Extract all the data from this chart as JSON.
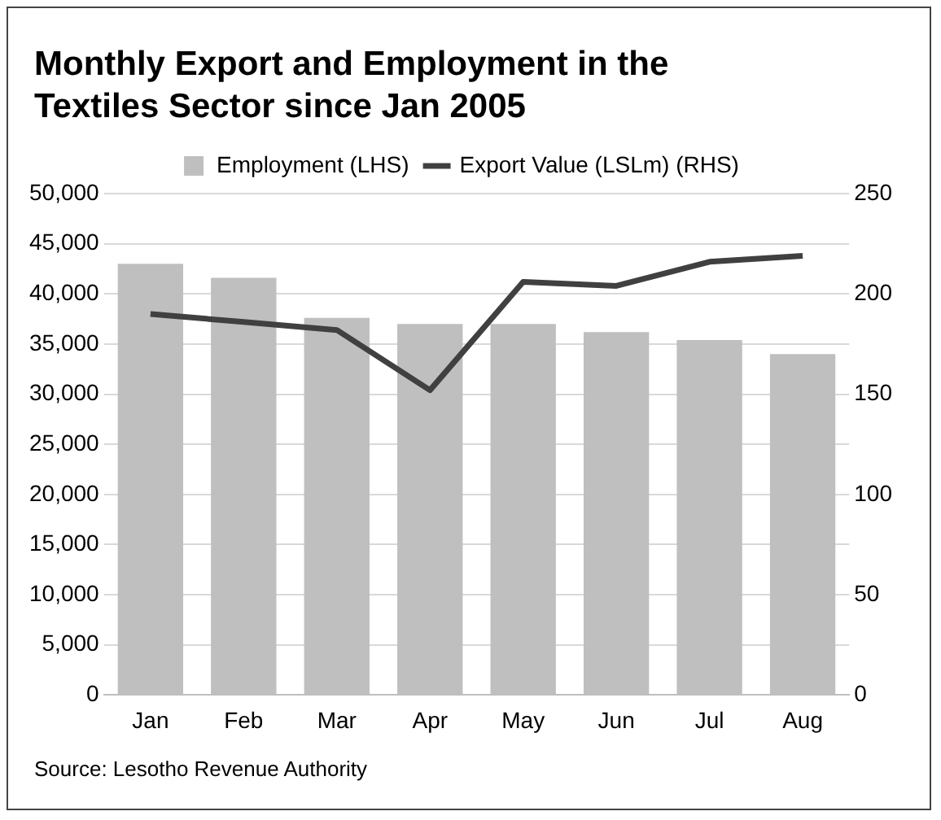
{
  "chart_data": {
    "type": "bar",
    "title": "Monthly Export and Employment in the Textiles Sector since Jan 2005",
    "categories": [
      "Jan",
      "Feb",
      "Mar",
      "Apr",
      "May",
      "Jun",
      "Jul",
      "Aug"
    ],
    "series": [
      {
        "name": "Employment (LHS)",
        "color": "#bfbfbf",
        "values": [
          43000,
          41600,
          37600,
          37000,
          37000,
          36200,
          35400,
          34000
        ]
      },
      {
        "name": "Export Value (LSLm) (RHS)",
        "type": "line",
        "axis": "y2",
        "color": "#404040",
        "values": [
          190,
          186,
          182,
          152,
          206,
          204,
          216,
          219
        ]
      }
    ],
    "ylim": [
      0,
      50000
    ],
    "yticks": [
      {
        "value": 0,
        "label": "0"
      },
      {
        "value": 5000,
        "label": "5,000"
      },
      {
        "value": 10000,
        "label": "10,000"
      },
      {
        "value": 15000,
        "label": "15,000"
      },
      {
        "value": 20000,
        "label": "20,000"
      },
      {
        "value": 25000,
        "label": "25,000"
      },
      {
        "value": 30000,
        "label": "30,000"
      },
      {
        "value": 35000,
        "label": "35,000"
      },
      {
        "value": 40000,
        "label": "40,000"
      },
      {
        "value": 45000,
        "label": "45,000"
      },
      {
        "value": 50000,
        "label": "50,000"
      }
    ],
    "y2lim": [
      0,
      250
    ],
    "y2ticks": [
      0,
      50,
      100,
      150,
      200,
      250
    ],
    "grid": "y",
    "legend": "top",
    "marker": "none",
    "line_style": "solid",
    "annotations": [
      "Source: Lesotho Revenue Authority"
    ]
  }
}
